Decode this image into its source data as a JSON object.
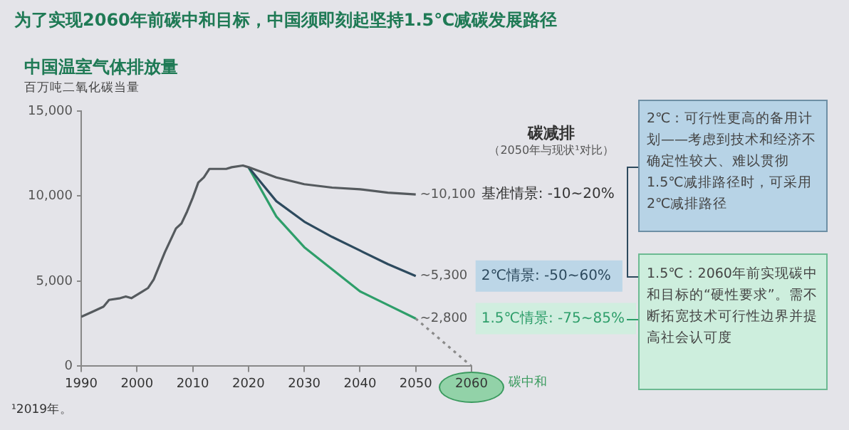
{
  "chart_data": {
    "type": "line",
    "title": "为了实现2060年前碳中和目标，中国须即刻起坚持1.5℃减碳发展路径",
    "subtitle": "中国温室气体排放量",
    "ylabel": "百万吨二氧化碳当量",
    "series": [
      {
        "name": "基准情景: -10~20%",
        "color": "#555a5e",
        "x": [
          1990,
          1992,
          1994,
          1995,
          1997,
          1998,
          1999,
          2001,
          2002,
          2003,
          2005,
          2007,
          2008,
          2009,
          2010,
          2011,
          2012,
          2013,
          2016,
          2017,
          2019,
          2020,
          2025,
          2030,
          2035,
          2040,
          2045,
          2050
        ],
        "values": [
          2900,
          3200,
          3500,
          3900,
          4000,
          4100,
          4000,
          4400,
          4600,
          5100,
          6700,
          8100,
          8400,
          9100,
          9900,
          10800,
          11100,
          11600,
          11600,
          11700,
          11800,
          11700,
          11100,
          10700,
          10500,
          10400,
          10200,
          10100
        ],
        "value_labels": [
          null,
          null,
          null,
          null,
          null,
          null,
          null,
          null,
          null,
          null,
          null,
          null,
          null,
          null,
          null,
          null,
          null,
          null,
          null,
          null,
          null,
          null,
          null,
          null,
          null,
          null,
          null,
          "~10,100"
        ]
      },
      {
        "name": "2℃情景: -50~60%",
        "color": "#2d4a5e",
        "x": [
          2020,
          2025,
          2030,
          2035,
          2040,
          2045,
          2050
        ],
        "values": [
          11700,
          9700,
          8500,
          7600,
          6800,
          6000,
          5300
        ],
        "value_labels": [
          null,
          null,
          null,
          null,
          null,
          null,
          "~5,300"
        ]
      },
      {
        "name": "1.5℃情景: -75~85%",
        "color": "#2e9e6a",
        "x": [
          2020,
          2025,
          2030,
          2035,
          2040,
          2045,
          2050
        ],
        "values": [
          11700,
          8800,
          7000,
          5700,
          4400,
          3600,
          2800
        ],
        "value_labels": [
          null,
          null,
          null,
          null,
          null,
          null,
          "~2,800"
        ]
      },
      {
        "color": "#8a8a8a",
        "line_style": "dotted",
        "x": [
          2050,
          2060
        ],
        "values": [
          2800,
          0
        ]
      }
    ],
    "xlim": [
      1990,
      2060
    ],
    "xticks": [
      1990,
      2000,
      2010,
      2020,
      2030,
      2040,
      2050,
      2060
    ],
    "ylim": [
      0,
      15000
    ],
    "yticks": [
      {
        "value": 0,
        "label": "0"
      },
      {
        "value": 5000,
        "label": "5,000"
      },
      {
        "value": 10000,
        "label": "10,000"
      },
      {
        "value": 15000,
        "label": "15,000"
      }
    ],
    "grid": false,
    "legend": "right",
    "marker": "none",
    "line_style": "solid",
    "annotations": [
      "碳减排",
      "（2050年与现状¹对比）",
      "2℃：可行性更高的备用计划——考虑到技术和经济不确定性较大、难以贯彻1.5℃减排路径时，可采用2℃减排路径",
      "1.5℃：2060年前实现碳中和目标的“硬性要求”。需不断拓宽技术可行性边界并提高社会认可度",
      "¹2019年。",
      "碳中和"
    ]
  }
}
